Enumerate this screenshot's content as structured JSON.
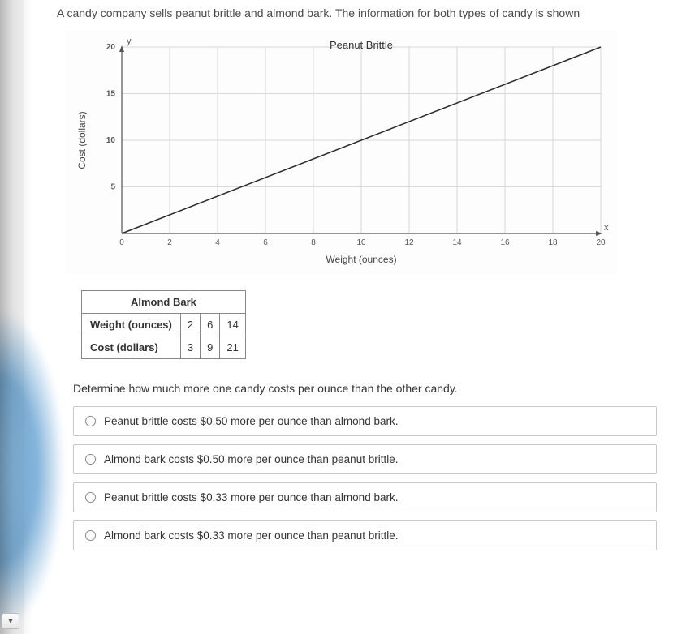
{
  "problem_text": "A candy company sells peanut brittle and almond bark. The information for both types of candy is shown",
  "chart": {
    "type": "line",
    "title": "Peanut Brittle",
    "x_label": "Weight (ounces)",
    "y_label": "Cost (dollars)",
    "y_axis_symbol": "y",
    "x_axis_symbol": "x",
    "xlim": [
      0,
      20
    ],
    "ylim": [
      0,
      20
    ],
    "x_ticks": [
      0,
      2,
      4,
      6,
      8,
      10,
      12,
      14,
      16,
      18,
      20
    ],
    "y_ticks": [
      5,
      10,
      15,
      20
    ],
    "line_points": [
      [
        0,
        0
      ],
      [
        20,
        20
      ]
    ],
    "line_color": "#2a2a2a",
    "line_width": 1.5,
    "grid_color": "#d8d8d8",
    "background_color": "#fdfdfd",
    "axis_color": "#555555",
    "tick_font_size": 10,
    "label_font_size": 12,
    "title_font_size": 13
  },
  "table": {
    "title": "Almond Bark",
    "row_headers": [
      "Weight (ounces)",
      "Cost (dollars)"
    ],
    "columns": [
      [
        2,
        6,
        14
      ],
      [
        3,
        9,
        21
      ]
    ]
  },
  "question": "Determine how much more one candy costs per ounce than the other candy.",
  "options": [
    "Peanut brittle costs $0.50 more per ounce than almond bark.",
    "Almond bark costs $0.50 more per ounce than peanut brittle.",
    "Peanut brittle costs $0.33 more per ounce than almond bark.",
    "Almond bark costs $0.33 more per ounce than peanut brittle."
  ],
  "toolbar_icon": "▾"
}
